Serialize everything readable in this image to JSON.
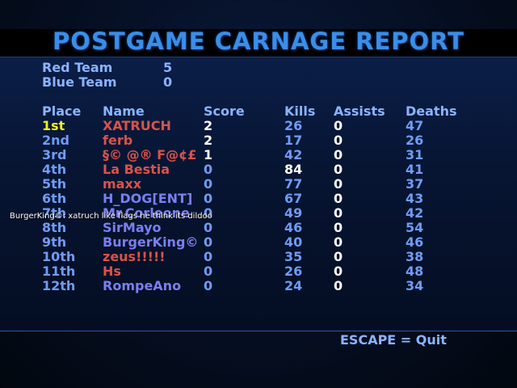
{
  "title": "POSTGAME CARNAGE REPORT",
  "teams": [
    {
      "label": "Red Team",
      "score": "5"
    },
    {
      "label": "Blue Team",
      "score": "0"
    }
  ],
  "headers": {
    "place": "Place",
    "name": "Name",
    "score": "Score",
    "kills": "Kills",
    "assists": "Assists",
    "deaths": "Deaths"
  },
  "players": [
    {
      "place": "1st",
      "name": "XATRUCH",
      "team": "red",
      "score": "2",
      "kills": "26",
      "assists": "0",
      "deaths": "47"
    },
    {
      "place": "2nd",
      "name": "ferb",
      "team": "red",
      "score": "2",
      "kills": "17",
      "assists": "0",
      "deaths": "26"
    },
    {
      "place": "3rd",
      "name": "§© @® F@¢£",
      "team": "red",
      "score": "1",
      "kills": "42",
      "assists": "0",
      "deaths": "31"
    },
    {
      "place": "4th",
      "name": "La Bestia",
      "team": "red",
      "score": "0",
      "kills": "84",
      "assists": "0",
      "deaths": "41"
    },
    {
      "place": "5th",
      "name": "maxx",
      "team": "red",
      "score": "0",
      "kills": "77",
      "assists": "0",
      "deaths": "37"
    },
    {
      "place": "6th",
      "name": "H_DOG[ENT]",
      "team": "blue",
      "score": "0",
      "kills": "67",
      "assists": "0",
      "deaths": "43"
    },
    {
      "place": "7th",
      "name": "Mr.Corleone",
      "team": "blue",
      "score": "0",
      "kills": "49",
      "assists": "0",
      "deaths": "42"
    },
    {
      "place": "8th",
      "name": "SirMayo",
      "team": "blue",
      "score": "0",
      "kills": "46",
      "assists": "0",
      "deaths": "54"
    },
    {
      "place": "9th",
      "name": "BurgerKing©",
      "team": "blue",
      "score": "0",
      "kills": "40",
      "assists": "0",
      "deaths": "46"
    },
    {
      "place": "10th",
      "name": "zeus!!!!!",
      "team": "red",
      "score": "0",
      "kills": "35",
      "assists": "0",
      "deaths": "38"
    },
    {
      "place": "11th",
      "name": "Hs",
      "team": "red",
      "score": "0",
      "kills": "26",
      "assists": "0",
      "deaths": "48"
    },
    {
      "place": "12th",
      "name": "RompeAno",
      "team": "blue",
      "score": "0",
      "kills": "24",
      "assists": "0",
      "deaths": "34"
    }
  ],
  "chat_message": "BurgerKing©: xatruch like flags he think its dildoo",
  "quit_hint": "ESCAPE = Quit",
  "colors": {
    "title": "#3a8ee8",
    "label": "#8ab4ff",
    "red_team": "#d9534a",
    "blue_team": "#7b7ff0",
    "first_place": "#f0f020",
    "highlight": "#ffffff"
  }
}
